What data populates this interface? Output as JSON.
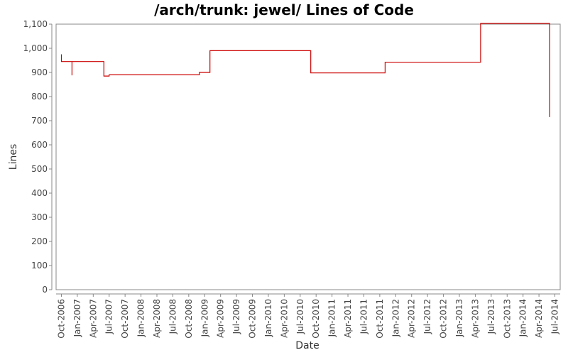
{
  "chart_data": {
    "type": "line",
    "title": "/arch/trunk: jewel/ Lines of Code",
    "xlabel": "Date",
    "ylabel": "Lines",
    "ylim": [
      0,
      1100
    ],
    "y_ticks": [
      "0",
      "100",
      "200",
      "300",
      "400",
      "500",
      "600",
      "700",
      "800",
      "900",
      "1,000",
      "1,100"
    ],
    "x_ticks": [
      "Oct-2006",
      "Jan-2007",
      "Apr-2007",
      "Jul-2007",
      "Oct-2007",
      "Jan-2008",
      "Apr-2008",
      "Jul-2008",
      "Oct-2008",
      "Jan-2009",
      "Apr-2009",
      "Jul-2009",
      "Oct-2009",
      "Jan-2010",
      "Apr-2010",
      "Jul-2010",
      "Oct-2010",
      "Jan-2011",
      "Apr-2011",
      "Jul-2011",
      "Oct-2011",
      "Jan-2012",
      "Apr-2012",
      "Jul-2012",
      "Oct-2012",
      "Jan-2013",
      "Apr-2013",
      "Jul-2013",
      "Oct-2013",
      "Jan-2014",
      "Apr-2014",
      "Jul-2014"
    ],
    "x_range": [
      "2006-09",
      "2014-08"
    ],
    "grid": false,
    "series_color": "#cc0000",
    "series": [
      {
        "steps": [
          [
            "2006-10",
            975
          ],
          [
            "2006-10",
            945
          ],
          [
            "2006-12",
            945
          ],
          [
            "2006-12",
            888
          ],
          [
            "2006-12",
            945
          ],
          [
            "2007-06",
            945
          ],
          [
            "2007-06",
            885
          ],
          [
            "2007-07",
            885
          ],
          [
            "2007-07",
            890
          ],
          [
            "2008-12",
            890
          ],
          [
            "2008-12",
            900
          ],
          [
            "2009-02",
            900
          ],
          [
            "2009-02",
            990
          ],
          [
            "2010-09",
            990
          ],
          [
            "2010-09",
            898
          ],
          [
            "2011-11",
            898
          ],
          [
            "2011-11",
            942
          ],
          [
            "2013-05",
            942
          ],
          [
            "2013-05",
            1103
          ],
          [
            "2014-06",
            1103
          ],
          [
            "2014-06",
            715
          ]
        ]
      }
    ]
  }
}
